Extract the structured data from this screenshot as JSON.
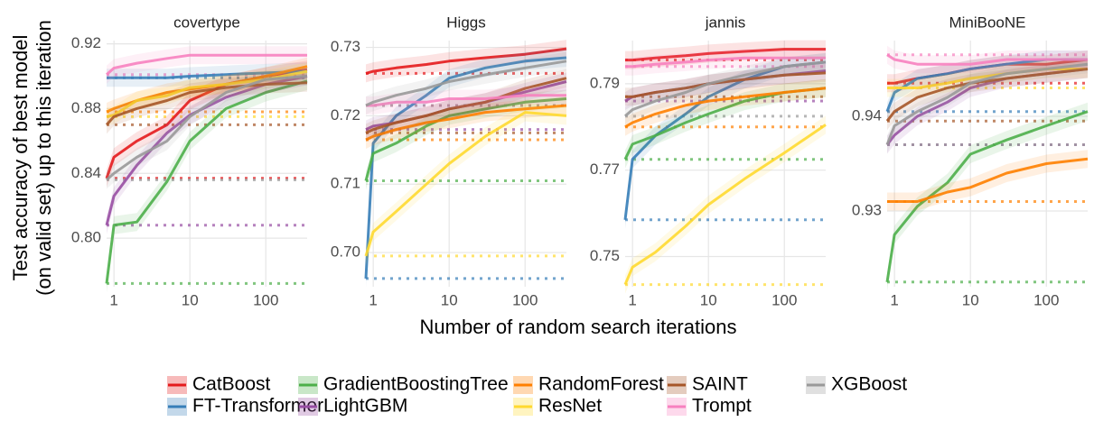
{
  "figure": {
    "xlabel": "Number of random search iterations",
    "ylabel": [
      "Test accuracy of best model",
      "(on valid set) up to this iteration"
    ]
  },
  "chart_data": [
    {
      "type": "line",
      "title": "covertype",
      "xscale": "log",
      "xlim": [
        0.8,
        350
      ],
      "xticks": [
        1,
        10,
        100
      ],
      "ylim": [
        0.77,
        0.922
      ],
      "yticks": [
        {
          "value": 0.8,
          "label": "0.80"
        },
        0.84,
        0.88,
        0.92
      ],
      "grid": true,
      "x": [
        0.8,
        1,
        2,
        5,
        10,
        30,
        100,
        350
      ],
      "series": [
        {
          "name": "CatBoost",
          "color": "#e41a1c",
          "values": [
            0.837,
            0.85,
            0.86,
            0.87,
            0.885,
            0.895,
            0.9,
            0.904
          ]
        },
        {
          "name": "FT-Transformer",
          "color": "#377eb8",
          "values": [
            0.899,
            0.899,
            0.899,
            0.899,
            0.9,
            0.901,
            0.902,
            0.903
          ]
        },
        {
          "name": "GradientBoostingTree",
          "color": "#4daf4a",
          "values": [
            0.772,
            0.808,
            0.81,
            0.835,
            0.86,
            0.88,
            0.89,
            0.897
          ]
        },
        {
          "name": "LightGBM",
          "color": "#984ea3",
          "values": [
            0.808,
            0.826,
            0.845,
            0.865,
            0.876,
            0.887,
            0.895,
            0.9
          ]
        },
        {
          "name": "RandomForest",
          "color": "#ff7f00",
          "values": [
            0.878,
            0.88,
            0.885,
            0.89,
            0.892,
            0.895,
            0.9,
            0.906
          ]
        },
        {
          "name": "ResNet",
          "color": "#ffd92f",
          "values": [
            0.875,
            0.876,
            0.885,
            0.888,
            0.893,
            0.895,
            0.898,
            0.903
          ]
        },
        {
          "name": "SAINT",
          "color": "#a65628",
          "values": [
            0.87,
            0.875,
            0.88,
            0.885,
            0.89,
            0.893,
            0.895,
            0.896
          ]
        },
        {
          "name": "Trompt",
          "color": "#f781bf",
          "values": [
            0.901,
            0.905,
            0.908,
            0.911,
            0.913,
            0.913,
            0.913,
            0.913
          ]
        },
        {
          "name": "XGBoost",
          "color": "#999999",
          "values": [
            0.836,
            0.84,
            0.85,
            0.86,
            0.875,
            0.89,
            0.898,
            0.9
          ]
        }
      ]
    },
    {
      "type": "line",
      "title": "Higgs",
      "xscale": "log",
      "xlim": [
        0.8,
        350
      ],
      "xticks": [
        1,
        10,
        100
      ],
      "ylim": [
        0.695,
        0.731
      ],
      "yticks": [
        {
          "value": 0.7,
          "label": "0.70"
        },
        0.71,
        0.72,
        0.73
      ],
      "grid": true,
      "x": [
        0.8,
        1,
        2,
        5,
        10,
        30,
        100,
        350
      ],
      "series": [
        {
          "name": "CatBoost",
          "color": "#e41a1c",
          "values": [
            0.7262,
            0.7265,
            0.727,
            0.7275,
            0.728,
            0.7285,
            0.729,
            0.7298
          ]
        },
        {
          "name": "FT-Transformer",
          "color": "#377eb8",
          "values": [
            0.6962,
            0.716,
            0.72,
            0.723,
            0.7255,
            0.727,
            0.728,
            0.7285
          ]
        },
        {
          "name": "GradientBoostingTree",
          "color": "#4daf4a",
          "values": [
            0.7105,
            0.7145,
            0.716,
            0.7185,
            0.72,
            0.721,
            0.722,
            0.7225
          ]
        },
        {
          "name": "LightGBM",
          "color": "#984ea3",
          "values": [
            0.718,
            0.7185,
            0.719,
            0.72,
            0.721,
            0.722,
            0.7235,
            0.725
          ]
        },
        {
          "name": "RandomForest",
          "color": "#ff7f00",
          "values": [
            0.7165,
            0.717,
            0.718,
            0.719,
            0.7195,
            0.7205,
            0.721,
            0.7215
          ]
        },
        {
          "name": "ResNet",
          "color": "#ffd92f",
          "values": [
            0.6995,
            0.703,
            0.706,
            0.71,
            0.713,
            0.717,
            0.7205,
            0.72
          ]
        },
        {
          "name": "SAINT",
          "color": "#a65628",
          "values": [
            0.7175,
            0.718,
            0.719,
            0.72,
            0.721,
            0.722,
            0.724,
            0.7255
          ]
        },
        {
          "name": "Trompt",
          "color": "#f781bf",
          "values": [
            0.7215,
            0.7215,
            0.722,
            0.722,
            0.7225,
            0.7225,
            0.723,
            0.723
          ]
        },
        {
          "name": "XGBoost",
          "color": "#999999",
          "values": [
            0.7215,
            0.722,
            0.723,
            0.724,
            0.725,
            0.726,
            0.727,
            0.728
          ]
        }
      ]
    },
    {
      "type": "line",
      "title": "jannis",
      "xscale": "log",
      "xlim": [
        0.8,
        350
      ],
      "xticks": [
        1,
        10,
        100
      ],
      "ylim": [
        0.743,
        0.8
      ],
      "yticks": [
        0.75,
        0.77,
        0.79
      ],
      "grid": true,
      "x": [
        0.8,
        1,
        2,
        5,
        10,
        30,
        100,
        350
      ],
      "series": [
        {
          "name": "CatBoost",
          "color": "#e41a1c",
          "values": [
            0.7955,
            0.7955,
            0.796,
            0.7965,
            0.797,
            0.7975,
            0.798,
            0.798
          ]
        },
        {
          "name": "FT-Transformer",
          "color": "#377eb8",
          "values": [
            0.7585,
            0.7725,
            0.778,
            0.783,
            0.787,
            0.791,
            0.794,
            0.795
          ]
        },
        {
          "name": "GradientBoostingTree",
          "color": "#4daf4a",
          "values": [
            0.7725,
            0.776,
            0.778,
            0.781,
            0.783,
            0.786,
            0.788,
            0.789
          ]
        },
        {
          "name": "LightGBM",
          "color": "#984ea3",
          "values": [
            0.786,
            0.787,
            0.788,
            0.789,
            0.79,
            0.791,
            0.792,
            0.793
          ]
        },
        {
          "name": "RandomForest",
          "color": "#ff7f00",
          "values": [
            0.78,
            0.781,
            0.783,
            0.785,
            0.786,
            0.787,
            0.788,
            0.789
          ]
        },
        {
          "name": "ResNet",
          "color": "#ffd92f",
          "values": [
            0.7435,
            0.7475,
            0.751,
            0.757,
            0.762,
            0.768,
            0.774,
            0.7805
          ]
        },
        {
          "name": "SAINT",
          "color": "#a65628",
          "values": [
            0.787,
            0.787,
            0.788,
            0.789,
            0.79,
            0.791,
            0.792,
            0.7925
          ]
        },
        {
          "name": "Trompt",
          "color": "#f781bf",
          "values": [
            0.794,
            0.794,
            0.7945,
            0.795,
            0.7955,
            0.796,
            0.796,
            0.796
          ]
        },
        {
          "name": "XGBoost",
          "color": "#999999",
          "values": [
            0.7825,
            0.784,
            0.786,
            0.788,
            0.79,
            0.792,
            0.794,
            0.795
          ]
        }
      ]
    },
    {
      "type": "line",
      "title": "MiniBooNE",
      "xscale": "log",
      "xlim": [
        0.8,
        350
      ],
      "xticks": [
        1,
        10,
        100
      ],
      "ylim": [
        0.922,
        0.948
      ],
      "yticks": [
        0.93,
        0.94
      ],
      "grid": true,
      "x": [
        0.8,
        1,
        2,
        5,
        10,
        30,
        100,
        350
      ],
      "series": [
        {
          "name": "CatBoost",
          "color": "#e41a1c",
          "values": [
            0.9435,
            0.9435,
            0.944,
            0.9445,
            0.945,
            0.9455,
            0.9455,
            0.946
          ]
        },
        {
          "name": "FT-Transformer",
          "color": "#377eb8",
          "values": [
            0.9405,
            0.9425,
            0.944,
            0.9445,
            0.945,
            0.9455,
            0.946,
            0.946
          ]
        },
        {
          "name": "GradientBoostingTree",
          "color": "#4daf4a",
          "values": [
            0.9225,
            0.9275,
            0.9305,
            0.933,
            0.936,
            0.9375,
            0.939,
            0.9405
          ]
        },
        {
          "name": "LightGBM",
          "color": "#984ea3",
          "values": [
            0.937,
            0.938,
            0.94,
            0.9415,
            0.943,
            0.944,
            0.9445,
            0.945
          ]
        },
        {
          "name": "RandomForest",
          "color": "#ff7f00",
          "values": [
            0.931,
            0.931,
            0.931,
            0.932,
            0.9325,
            0.934,
            0.935,
            0.9355
          ]
        },
        {
          "name": "ResNet",
          "color": "#ffd92f",
          "values": [
            0.943,
            0.943,
            0.943,
            0.9435,
            0.944,
            0.9445,
            0.945,
            0.945
          ]
        },
        {
          "name": "SAINT",
          "color": "#a65628",
          "values": [
            0.9395,
            0.9405,
            0.942,
            0.943,
            0.9435,
            0.944,
            0.9445,
            0.945
          ]
        },
        {
          "name": "Trompt",
          "color": "#f781bf",
          "values": [
            0.9465,
            0.946,
            0.9455,
            0.9455,
            0.9455,
            0.946,
            0.946,
            0.946
          ]
        },
        {
          "name": "XGBoost",
          "color": "#999999",
          "values": [
            0.937,
            0.939,
            0.9405,
            0.942,
            0.9435,
            0.9445,
            0.945,
            0.9455
          ]
        }
      ]
    }
  ]
}
